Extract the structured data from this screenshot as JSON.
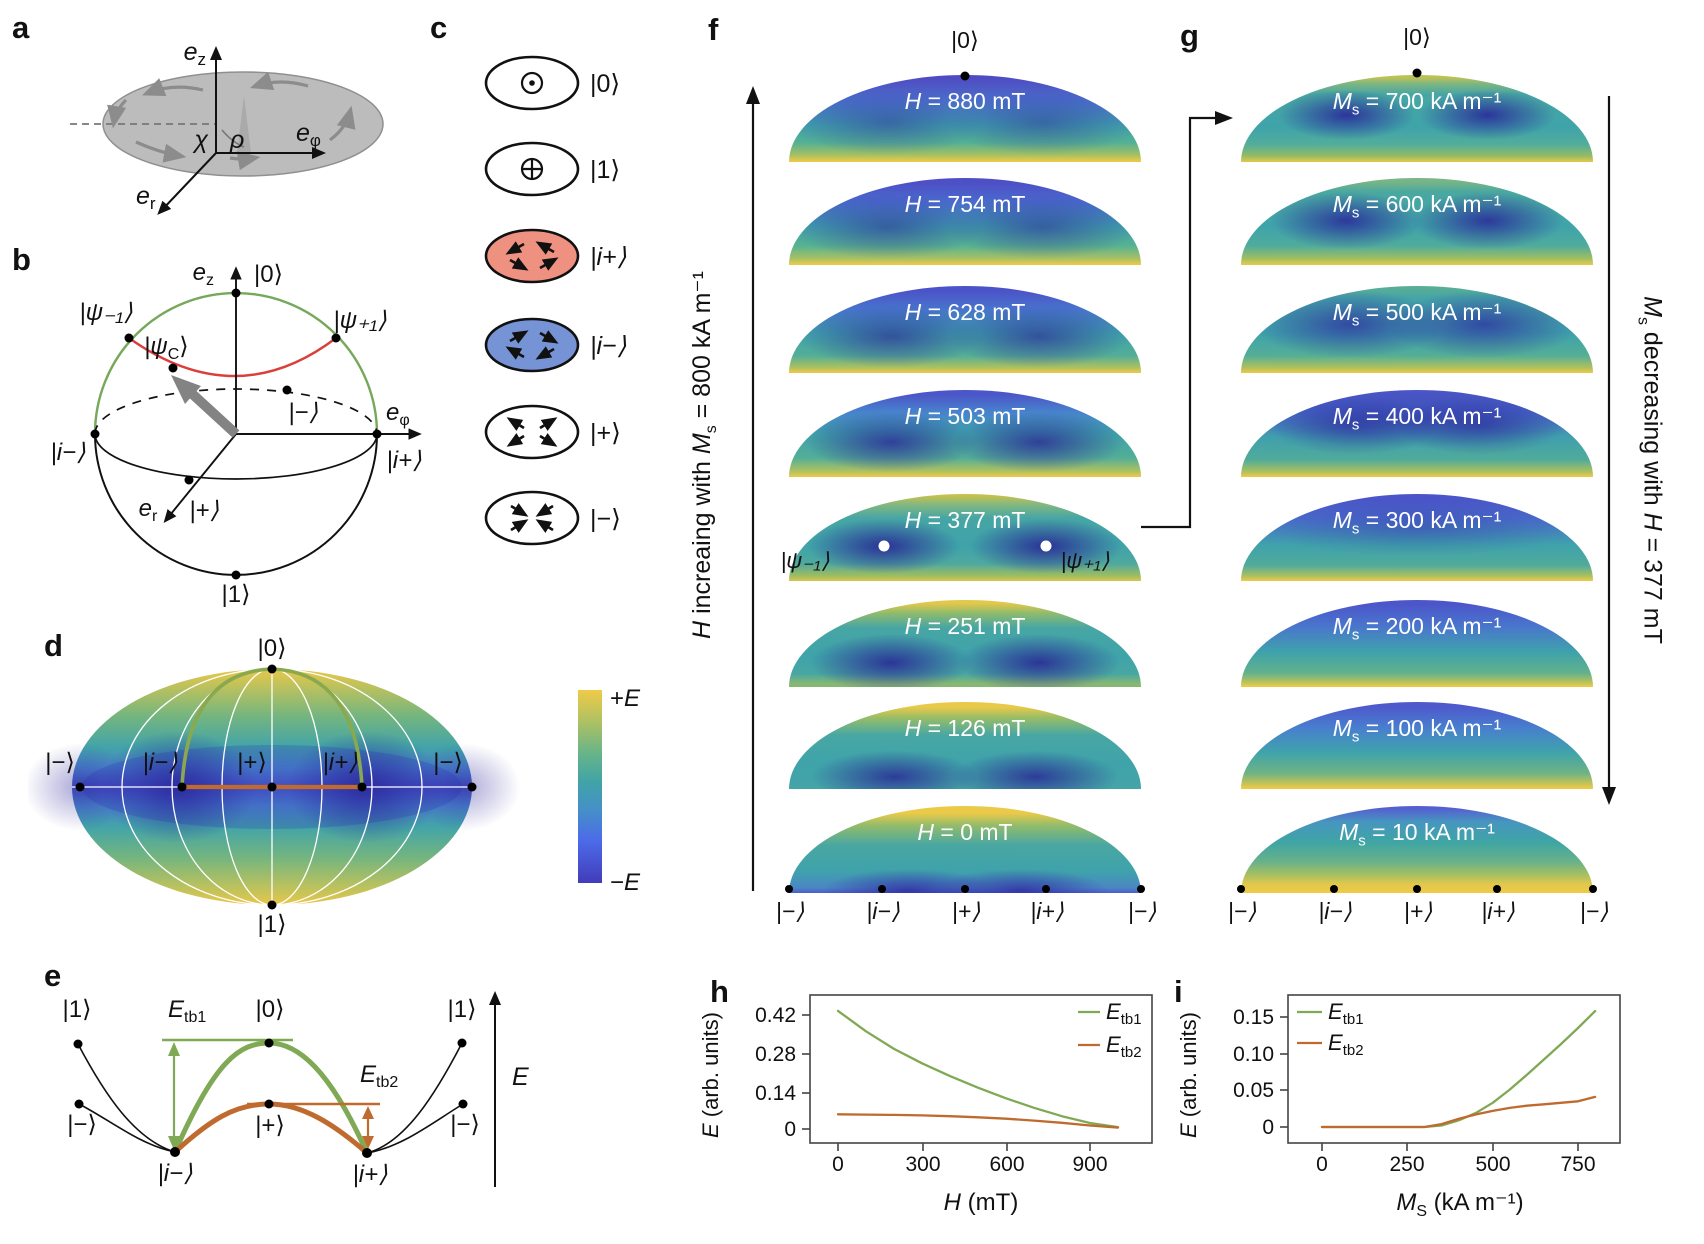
{
  "colors": {
    "curve_green": "#7fa954",
    "curve_orange": "#bf6a2e",
    "arc_red": "#d9403b",
    "vortex_salmon": "#ee9181",
    "vortex_blue": "#7693d6",
    "sphere_green": "#76a85a",
    "landscape_yellow": "#ecc94a",
    "landscape_teal": "#3fa3ab",
    "landscape_blue": "#4a4fc0"
  },
  "panel_a": {
    "letter": "a",
    "axis_e": "e",
    "sub_z": "z",
    "sub_phi": "φ",
    "sub_r": "r",
    "angle_chi": "χ",
    "angle_rho": "ρ"
  },
  "panel_b": {
    "letter": "b",
    "axis_e": "e",
    "sub_z": "z",
    "sub_phi": "φ",
    "sub_r": "r",
    "state_top": "|0⟩",
    "state_bottom": "|1⟩",
    "psi_minus1": "|ψ₋₁⟩",
    "psi_plus1": "|ψ₊₁⟩",
    "psi_c_pre": "|ψ",
    "psi_c_sub": "C",
    "psi_c_post": "⟩",
    "state_minus": "|−⟩",
    "state_i_minus": "|i−⟩",
    "state_i_plus": "|i+⟩",
    "state_plus": "|+⟩"
  },
  "panel_c": {
    "letter": "c",
    "items": [
      {
        "symbol": "out-of-plane-dot",
        "label": "|0⟩"
      },
      {
        "symbol": "into-plane-cross",
        "label": "|1⟩"
      },
      {
        "symbol": "vortex-counterclockwise",
        "label": "|i+⟩"
      },
      {
        "symbol": "vortex-clockwise",
        "label": "|i−⟩"
      },
      {
        "symbol": "diverging-arrows",
        "label": "|+⟩"
      },
      {
        "symbol": "converging-arrows",
        "label": "|−⟩"
      }
    ]
  },
  "panel_d": {
    "letter": "d",
    "state_top": "|0⟩",
    "state_bottom": "|1⟩",
    "equator_states": [
      "|−⟩",
      "|i−⟩",
      "|+⟩",
      "|i+⟩",
      "|−⟩"
    ],
    "colorbar_top_sign": "+",
    "colorbar_bottom_sign": "−",
    "colorbar_symbol": "E"
  },
  "panel_e": {
    "letter": "e",
    "barrier1_base": "E",
    "barrier1_sub": "tb1",
    "barrier2_base": "E",
    "barrier2_sub": "tb2",
    "axis_label": "E",
    "left_top": "|1⟩",
    "left_mid": "|−⟩",
    "min_left": "|i−⟩",
    "peak": "|0⟩",
    "saddle": "|+⟩",
    "min_right": "|i+⟩",
    "right_top": "|1⟩",
    "right_mid": "|−⟩"
  },
  "panel_f": {
    "letter": "f",
    "top_state": "|0⟩",
    "var_letter": "H",
    "rows": [
      " = 880 mT",
      " = 754 mT",
      " = 628 mT",
      " = 503 mT",
      " = 377 mT",
      " = 251 mT",
      " = 126 mT",
      " = 0 mT"
    ],
    "psi_left": "|ψ₋₁⟩",
    "psi_right": "|ψ₊₁⟩",
    "bottom_states": [
      "|−⟩",
      "|i−⟩",
      "|+⟩",
      "|i+⟩",
      "|−⟩"
    ],
    "axis_label": {
      "it1": "H",
      "text1": " increaing with ",
      "it2": "M",
      "it2_sub": "s",
      "text2": " = 800 kA m⁻¹"
    }
  },
  "panel_g": {
    "letter": "g",
    "top_state": "|0⟩",
    "var_letter": "M",
    "var_sub": "s",
    "rows": [
      " = 700 kA m⁻¹",
      " = 600 kA m⁻¹",
      " = 500 kA m⁻¹",
      " = 400 kA m⁻¹",
      " = 300 kA m⁻¹",
      " = 200 kA m⁻¹",
      " = 100 kA m⁻¹",
      " = 10 kA m⁻¹"
    ],
    "bottom_states": [
      "|−⟩",
      "|i−⟩",
      "|+⟩",
      "|i+⟩",
      "|−⟩"
    ],
    "axis_label": {
      "it1": "M",
      "it1_sub": "s",
      "text1": " decreasing with ",
      "it2": "H",
      "text2": " = 377 mT"
    }
  },
  "chart_data": [
    {
      "id": "h",
      "type": "line",
      "title": "",
      "xlabel": "H (mT)",
      "ylabel": "E (arb. units)",
      "xlabel_it": "H",
      "xlabel_rest": " (mT)",
      "ylabel_it": "E",
      "ylabel_rest": " (arb. units)",
      "xlim": [
        -100,
        1010
      ],
      "ylim": [
        -0.035,
        0.47
      ],
      "xticks": [
        0,
        300,
        600,
        900
      ],
      "yticks": [
        0,
        0.14,
        0.28,
        0.42
      ],
      "xtick_labels": [
        "0",
        "300",
        "600",
        "900"
      ],
      "ytick_labels": [
        "0.42",
        "0.28",
        "0.14",
        "0"
      ],
      "grid": false,
      "legend_position": "top-right",
      "legend": [
        {
          "base": "E",
          "sub": "tb1"
        },
        {
          "base": "E",
          "sub": "tb2"
        }
      ],
      "series": [
        {
          "name": "E_tb1",
          "color": "#7fa954",
          "x": [
            0,
            100,
            200,
            300,
            400,
            500,
            600,
            700,
            800,
            900,
            1000
          ],
          "y": [
            0.435,
            0.36,
            0.295,
            0.242,
            0.195,
            0.152,
            0.113,
            0.078,
            0.047,
            0.022,
            0.007
          ]
        },
        {
          "name": "E_tb2",
          "color": "#bf6a2e",
          "x": [
            0,
            100,
            200,
            300,
            400,
            500,
            600,
            700,
            800,
            900,
            1000
          ],
          "y": [
            0.054,
            0.053,
            0.052,
            0.05,
            0.047,
            0.043,
            0.038,
            0.031,
            0.023,
            0.013,
            0.005
          ]
        }
      ]
    },
    {
      "id": "i",
      "type": "line",
      "title": "",
      "xlabel": "M_S (kA m⁻¹)",
      "ylabel": "E (arb. units)",
      "xlabel_it": "M",
      "xlabel_sub": "S",
      "xlabel_rest": " (kA m⁻¹)",
      "ylabel_it": "E",
      "ylabel_rest": " (arb. units)",
      "xlim": [
        -60,
        870
      ],
      "ylim": [
        -0.012,
        0.175
      ],
      "xticks": [
        0,
        250,
        500,
        750
      ],
      "yticks": [
        0,
        0.05,
        0.1,
        0.15
      ],
      "xtick_labels": [
        "0",
        "250",
        "500",
        "750"
      ],
      "ytick_labels": [
        "0.15",
        "0.10",
        "0.05",
        "0"
      ],
      "grid": false,
      "legend_position": "top-left",
      "legend": [
        {
          "base": "E",
          "sub": "tb1"
        },
        {
          "base": "E",
          "sub": "tb2"
        }
      ],
      "series": [
        {
          "name": "E_tb1",
          "color": "#7fa954",
          "x": [
            0,
            50,
            100,
            150,
            200,
            250,
            300,
            350,
            400,
            450,
            500,
            550,
            600,
            650,
            700,
            750,
            800
          ],
          "y": [
            0,
            0,
            0,
            0,
            0,
            0,
            0,
            0.002,
            0.009,
            0.019,
            0.033,
            0.051,
            0.071,
            0.092,
            0.113,
            0.135,
            0.158
          ]
        },
        {
          "name": "E_tb2",
          "color": "#bf6a2e",
          "x": [
            0,
            50,
            100,
            150,
            200,
            250,
            300,
            350,
            400,
            450,
            500,
            550,
            600,
            650,
            700,
            750,
            800
          ],
          "y": [
            0,
            0,
            0,
            0,
            0,
            0,
            0,
            0.004,
            0.011,
            0.017,
            0.022,
            0.026,
            0.029,
            0.031,
            0.033,
            0.035,
            0.041
          ]
        }
      ]
    }
  ]
}
